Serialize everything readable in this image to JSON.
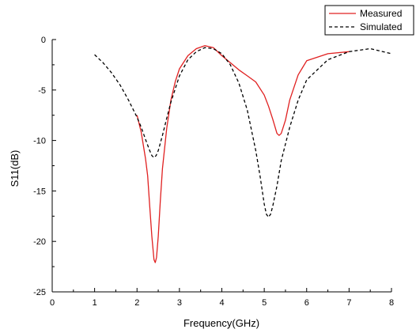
{
  "chart_data": {
    "type": "line",
    "xlabel": "Frequency(GHz)",
    "ylabel": "S11(dB)",
    "xlim": [
      0,
      8
    ],
    "ylim": [
      -25,
      0
    ],
    "x_ticks": [
      "0",
      "1",
      "2",
      "3",
      "4",
      "5",
      "6",
      "7",
      "8"
    ],
    "y_ticks": [
      "0",
      "-5",
      "-10",
      "-15",
      "-20",
      "-25"
    ],
    "grid": false,
    "legend_position": "top-right",
    "series": [
      {
        "name": "Measured",
        "color": "#e02020",
        "style": "solid",
        "x": [
          2.0,
          2.1,
          2.2,
          2.25,
          2.3,
          2.35,
          2.4,
          2.43,
          2.46,
          2.5,
          2.55,
          2.6,
          2.7,
          2.8,
          2.9,
          3.0,
          3.2,
          3.4,
          3.6,
          3.8,
          4.0,
          4.2,
          4.4,
          4.6,
          4.8,
          5.0,
          5.1,
          5.2,
          5.3,
          5.35,
          5.4,
          5.5,
          5.6,
          5.8,
          6.0,
          6.5,
          7.0
        ],
        "y": [
          -7.5,
          -9.2,
          -11.8,
          -13.5,
          -16.5,
          -19.5,
          -21.8,
          -22.1,
          -21.6,
          -19.5,
          -16.0,
          -12.8,
          -8.8,
          -6.0,
          -4.2,
          -2.9,
          -1.6,
          -0.9,
          -0.6,
          -0.8,
          -1.6,
          -2.3,
          -3.0,
          -3.6,
          -4.2,
          -5.5,
          -6.6,
          -7.9,
          -9.3,
          -9.5,
          -9.3,
          -8.0,
          -6.0,
          -3.5,
          -2.1,
          -1.4,
          -1.2
        ]
      },
      {
        "name": "Simulated",
        "color": "#000000",
        "style": "dashed",
        "x": [
          1.0,
          1.2,
          1.4,
          1.6,
          1.8,
          2.0,
          2.1,
          2.2,
          2.3,
          2.35,
          2.4,
          2.45,
          2.5,
          2.6,
          2.7,
          2.8,
          3.0,
          3.2,
          3.4,
          3.6,
          3.8,
          4.0,
          4.2,
          4.4,
          4.6,
          4.8,
          4.9,
          5.0,
          5.05,
          5.1,
          5.15,
          5.2,
          5.3,
          5.4,
          5.6,
          5.8,
          6.0,
          6.5,
          7.0,
          7.5,
          8.0
        ],
        "y": [
          -1.5,
          -2.3,
          -3.3,
          -4.5,
          -6.0,
          -7.7,
          -8.7,
          -9.9,
          -11.0,
          -11.5,
          -11.7,
          -11.5,
          -11.0,
          -9.5,
          -7.8,
          -6.2,
          -3.6,
          -2.0,
          -1.2,
          -0.8,
          -0.9,
          -1.4,
          -2.5,
          -4.3,
          -7.0,
          -11.0,
          -13.5,
          -16.3,
          -17.3,
          -17.6,
          -17.3,
          -16.5,
          -14.5,
          -12.0,
          -8.7,
          -6.0,
          -4.0,
          -2.0,
          -1.2,
          -0.9,
          -1.4
        ]
      }
    ]
  }
}
